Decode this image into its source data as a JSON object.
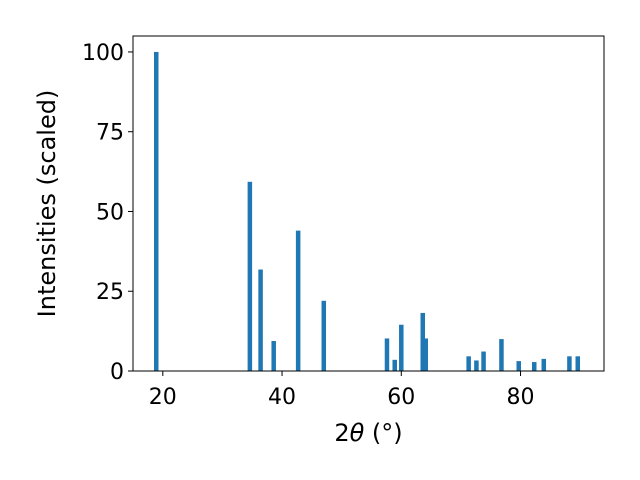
{
  "chart_data": {
    "type": "bar",
    "title": "",
    "xlabel_main": "2",
    "xlabel_symbol": "θ",
    "xlabel_unit": " (°)",
    "ylabel": "Intensities (scaled)",
    "xlim": [
      15,
      94
    ],
    "ylim": [
      0,
      105
    ],
    "xticks": [
      20,
      40,
      60,
      80
    ],
    "yticks": [
      0,
      25,
      50,
      75,
      100
    ],
    "grid": false,
    "bar_color": "#1f77b4",
    "points": [
      {
        "x": 18.9,
        "y": 100
      },
      {
        "x": 34.6,
        "y": 59.3
      },
      {
        "x": 36.4,
        "y": 31.8
      },
      {
        "x": 38.6,
        "y": 9.4
      },
      {
        "x": 42.7,
        "y": 44
      },
      {
        "x": 47.0,
        "y": 22
      },
      {
        "x": 57.6,
        "y": 10.2
      },
      {
        "x": 58.9,
        "y": 3.5
      },
      {
        "x": 60.0,
        "y": 14.5
      },
      {
        "x": 63.6,
        "y": 18.2
      },
      {
        "x": 64.1,
        "y": 10.2
      },
      {
        "x": 71.3,
        "y": 4.6
      },
      {
        "x": 72.6,
        "y": 3.3
      },
      {
        "x": 73.8,
        "y": 6.1
      },
      {
        "x": 76.8,
        "y": 10
      },
      {
        "x": 79.7,
        "y": 3.1
      },
      {
        "x": 82.3,
        "y": 2.8
      },
      {
        "x": 83.9,
        "y": 3.8
      },
      {
        "x": 88.2,
        "y": 4.6
      },
      {
        "x": 89.6,
        "y": 4.6
      }
    ]
  }
}
